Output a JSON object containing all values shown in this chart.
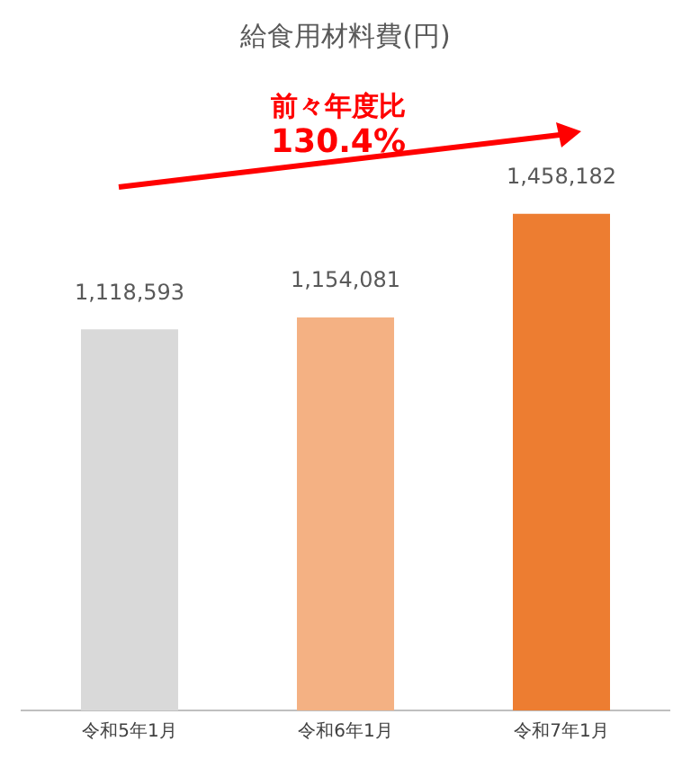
{
  "chart_data": {
    "type": "bar",
    "title": "給食用材料費(円)",
    "categories": [
      "令和5年1月",
      "令和6年1月",
      "令和7年1月"
    ],
    "values": [
      1118593,
      1154081,
      1458182
    ],
    "colors": [
      "#d9d9d9",
      "#f4b183",
      "#ed7d31"
    ],
    "annotations": [
      "前々年度比",
      "130.4%"
    ],
    "value_labels": [
      "1,118,593",
      "1,154,081",
      "1,458,182"
    ],
    "legend": false
  }
}
